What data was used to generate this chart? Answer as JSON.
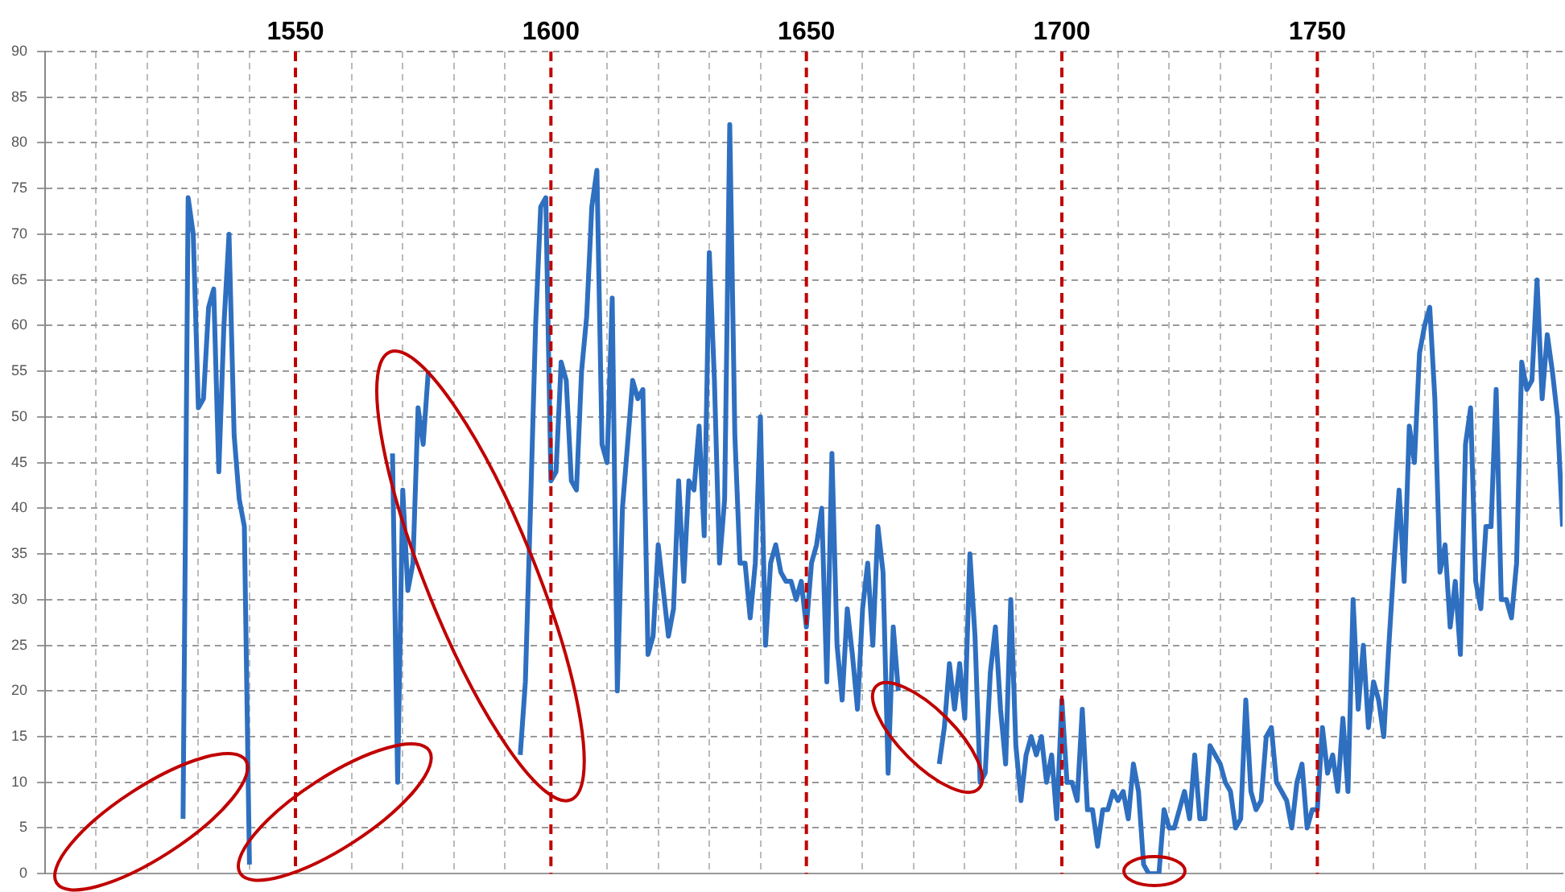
{
  "chart_data": {
    "type": "line",
    "tick_labels": "y",
    "grid": true,
    "marker": "none",
    "line_style": "solid",
    "xlim": [
      1501,
      1798
    ],
    "xticks": [
      {
        "value": 1511,
        "label": null
      },
      {
        "value": 1521,
        "label": null
      },
      {
        "value": 1531,
        "label": null
      },
      {
        "value": 1541,
        "label": null
      },
      {
        "value": 1561,
        "label": null
      },
      {
        "value": 1571,
        "label": null
      },
      {
        "value": 1581,
        "label": null
      },
      {
        "value": 1591,
        "label": null
      },
      {
        "value": 1611,
        "label": null
      },
      {
        "value": 1621,
        "label": null
      },
      {
        "value": 1631,
        "label": null
      },
      {
        "value": 1641,
        "label": null
      },
      {
        "value": 1661,
        "label": null
      },
      {
        "value": 1671,
        "label": null
      },
      {
        "value": 1681,
        "label": null
      },
      {
        "value": 1691,
        "label": null
      },
      {
        "value": 1711,
        "label": null
      },
      {
        "value": 1721,
        "label": null
      },
      {
        "value": 1731,
        "label": null
      },
      {
        "value": 1741,
        "label": null
      },
      {
        "value": 1761,
        "label": null
      },
      {
        "value": 1771,
        "label": null
      },
      {
        "value": 1781,
        "label": null
      },
      {
        "value": 1791,
        "label": null
      }
    ],
    "ylim": [
      0,
      90
    ],
    "yticks": [
      0,
      5,
      10,
      15,
      20,
      25,
      30,
      35,
      40,
      45,
      50,
      55,
      60,
      65,
      70,
      75,
      80,
      85,
      90
    ],
    "ref_lines": [
      {
        "axis": "x",
        "value": 1550,
        "label": "1550",
        "color": "#c00000",
        "line_style": "dashed"
      },
      {
        "axis": "x",
        "value": 1600,
        "label": "1600",
        "color": "#c00000",
        "line_style": "dashed"
      },
      {
        "axis": "x",
        "value": 1650,
        "label": "1650",
        "color": "#c00000",
        "line_style": "dashed"
      },
      {
        "axis": "x",
        "value": 1700,
        "label": "1700",
        "color": "#c00000",
        "line_style": "dashed"
      },
      {
        "axis": "x",
        "value": 1750,
        "label": "1750",
        "color": "#c00000",
        "line_style": "dashed"
      }
    ],
    "series": [
      {
        "color": "#2e6fc0",
        "x": [
          1528,
          1529,
          1530,
          1531,
          1532,
          1533,
          1534,
          1535,
          1536,
          1537,
          1538,
          1539,
          1540,
          1541,
          1542,
          1569,
          1570,
          1571,
          1572,
          1573,
          1574,
          1575,
          1576,
          1577,
          1594,
          1595,
          1596,
          1597,
          1598,
          1599,
          1600,
          1601,
          1602,
          1603,
          1604,
          1605,
          1606,
          1607,
          1608,
          1609,
          1610,
          1611,
          1612,
          1613,
          1614,
          1615,
          1616,
          1617,
          1618,
          1619,
          1620,
          1621,
          1622,
          1623,
          1624,
          1625,
          1626,
          1627,
          1628,
          1629,
          1630,
          1631,
          1632,
          1633,
          1634,
          1635,
          1636,
          1637,
          1638,
          1639,
          1640,
          1641,
          1642,
          1643,
          1644,
          1645,
          1646,
          1647,
          1648,
          1649,
          1650,
          1651,
          1652,
          1653,
          1654,
          1655,
          1656,
          1657,
          1658,
          1659,
          1660,
          1661,
          1662,
          1663,
          1664,
          1665,
          1666,
          1667,
          1668,
          1669,
          1676,
          1677,
          1678,
          1679,
          1680,
          1681,
          1682,
          1683,
          1684,
          1685,
          1686,
          1687,
          1688,
          1689,
          1690,
          1691,
          1692,
          1693,
          1694,
          1695,
          1696,
          1697,
          1698,
          1699,
          1700,
          1701,
          1702,
          1703,
          1704,
          1705,
          1706,
          1707,
          1708,
          1709,
          1710,
          1711,
          1712,
          1713,
          1714,
          1715,
          1716,
          1717,
          1718,
          1719,
          1720,
          1721,
          1722,
          1723,
          1724,
          1725,
          1726,
          1727,
          1728,
          1729,
          1730,
          1731,
          1732,
          1733,
          1734,
          1735,
          1736,
          1737,
          1738,
          1739,
          1740,
          1741,
          1742,
          1743,
          1744,
          1745,
          1746,
          1747,
          1748,
          1749,
          1750,
          1751,
          1752,
          1753,
          1754,
          1755,
          1756,
          1757,
          1758,
          1759,
          1760,
          1761,
          1762,
          1763,
          1764,
          1765,
          1766,
          1767,
          1768,
          1769,
          1770,
          1771,
          1772,
          1773,
          1774,
          1775,
          1776,
          1777,
          1778,
          1779,
          1780,
          1781,
          1782,
          1783,
          1784,
          1785,
          1786,
          1787,
          1788,
          1789,
          1790,
          1791,
          1792,
          1793,
          1794,
          1795,
          1796,
          1797,
          1798
        ],
        "values": [
          6,
          74,
          70,
          51,
          52,
          62,
          64,
          44,
          60,
          70,
          48,
          41,
          38,
          1,
          null,
          46,
          10,
          42,
          31,
          34,
          51,
          47,
          55,
          null,
          13,
          21,
          40,
          60,
          73,
          74,
          43,
          44,
          56,
          54,
          43,
          42,
          55,
          61,
          73,
          77,
          47,
          45,
          63,
          20,
          40,
          47,
          54,
          52,
          53,
          24,
          26,
          36,
          31,
          26,
          29,
          43,
          32,
          43,
          42,
          49,
          37,
          68,
          54,
          34,
          41,
          82,
          48,
          34,
          34,
          28,
          34,
          50,
          25,
          34,
          36,
          33,
          32,
          32,
          30,
          32,
          27,
          34,
          36,
          40,
          21,
          46,
          25,
          19,
          29,
          24,
          18,
          29,
          34,
          25,
          38,
          33,
          11,
          27,
          20,
          null,
          12,
          16,
          23,
          18,
          23,
          17,
          35,
          26,
          10,
          11,
          22,
          27,
          18,
          12,
          30,
          14,
          8,
          13,
          15,
          13,
          15,
          10,
          13,
          6,
          19,
          10,
          10,
          8,
          18,
          7,
          7,
          3,
          7,
          7,
          9,
          8,
          9,
          6,
          12,
          9,
          1,
          0,
          0,
          0,
          7,
          5,
          5,
          7,
          9,
          6,
          13,
          6,
          6,
          14,
          13,
          12,
          10,
          9,
          5,
          6,
          19,
          9,
          7,
          8,
          15,
          16,
          10,
          9,
          8,
          5,
          10,
          12,
          5,
          7,
          7,
          16,
          11,
          13,
          9,
          17,
          9,
          30,
          18,
          25,
          16,
          21,
          19,
          15,
          25,
          34,
          42,
          32,
          49,
          45,
          57,
          60,
          62,
          52,
          33,
          36,
          27,
          32,
          24,
          47,
          51,
          32,
          29,
          38,
          38,
          53,
          30,
          30,
          28,
          34,
          56,
          53,
          54,
          65,
          52,
          59,
          55,
          50,
          38
        ]
      }
    ]
  }
}
